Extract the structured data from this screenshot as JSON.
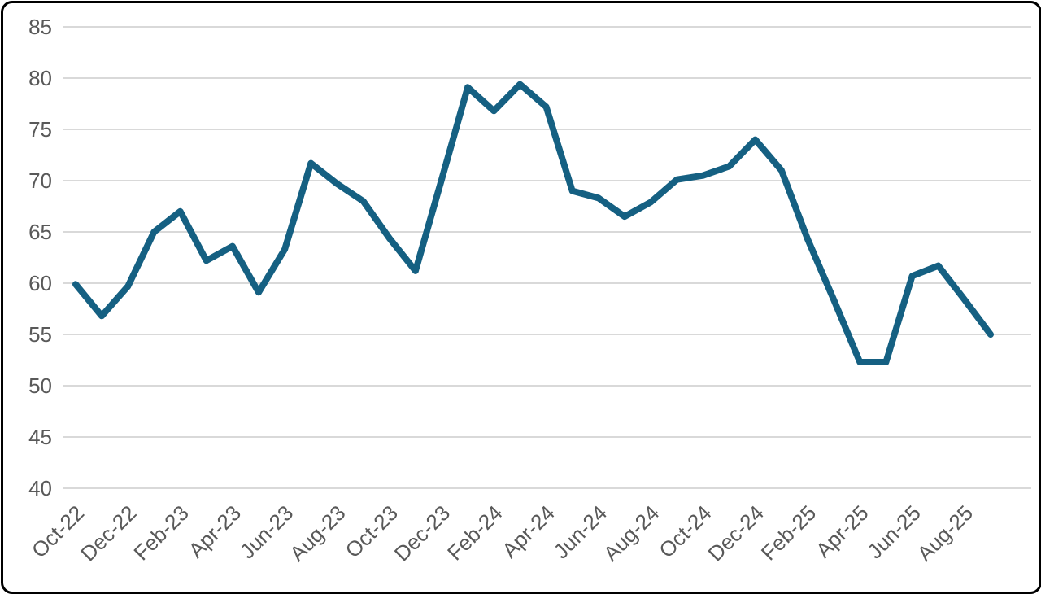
{
  "chart_data": {
    "type": "line",
    "title": "",
    "xlabel": "",
    "ylabel": "",
    "legend": "none",
    "grid": "horizontal",
    "ylim": [
      40,
      85
    ],
    "y_ticks": [
      40,
      45,
      50,
      55,
      60,
      65,
      70,
      75,
      80,
      85
    ],
    "x": [
      "Oct-22",
      "Nov-22",
      "Dec-22",
      "Jan-23",
      "Feb-23",
      "Mar-23",
      "Apr-23",
      "May-23",
      "Jun-23",
      "Jul-23",
      "Aug-23",
      "Sep-23",
      "Oct-23",
      "Nov-23",
      "Dec-23",
      "Jan-24",
      "Feb-24",
      "Mar-24",
      "Apr-24",
      "May-24",
      "Jun-24",
      "Jul-24",
      "Aug-24",
      "Sep-24",
      "Oct-24",
      "Nov-24",
      "Dec-24",
      "Jan-25",
      "Feb-25",
      "Mar-25",
      "Apr-25",
      "May-25",
      "Jun-25",
      "Jul-25",
      "Aug-25",
      "Sep-25"
    ],
    "values": [
      59.9,
      56.8,
      59.7,
      65.0,
      67.0,
      62.2,
      63.6,
      59.1,
      63.3,
      71.7,
      69.7,
      68.0,
      64.4,
      61.2,
      70.1,
      79.1,
      76.8,
      79.4,
      77.2,
      69.0,
      68.3,
      66.5,
      67.9,
      70.1,
      70.5,
      71.4,
      74.0,
      71.0,
      64.3,
      58.4,
      52.3,
      52.3,
      60.7,
      61.7,
      58.4,
      55.0
    ],
    "x_tick_labels": [
      "Oct-22",
      "Dec-22",
      "Feb-23",
      "Apr-23",
      "Jun-23",
      "Aug-23",
      "Oct-23",
      "Dec-23",
      "Feb-24",
      "Apr-24",
      "Jun-24",
      "Aug-24",
      "Oct-24",
      "Dec-24",
      "Feb-25",
      "Apr-25",
      "Jun-25",
      "Aug-25"
    ],
    "x_tick_every": 2,
    "series_color": "#156082",
    "gridline_color": "#d9d9d9",
    "tick_label_color": "#595959",
    "frame_border_color": "#000000",
    "background_color": "#ffffff"
  }
}
